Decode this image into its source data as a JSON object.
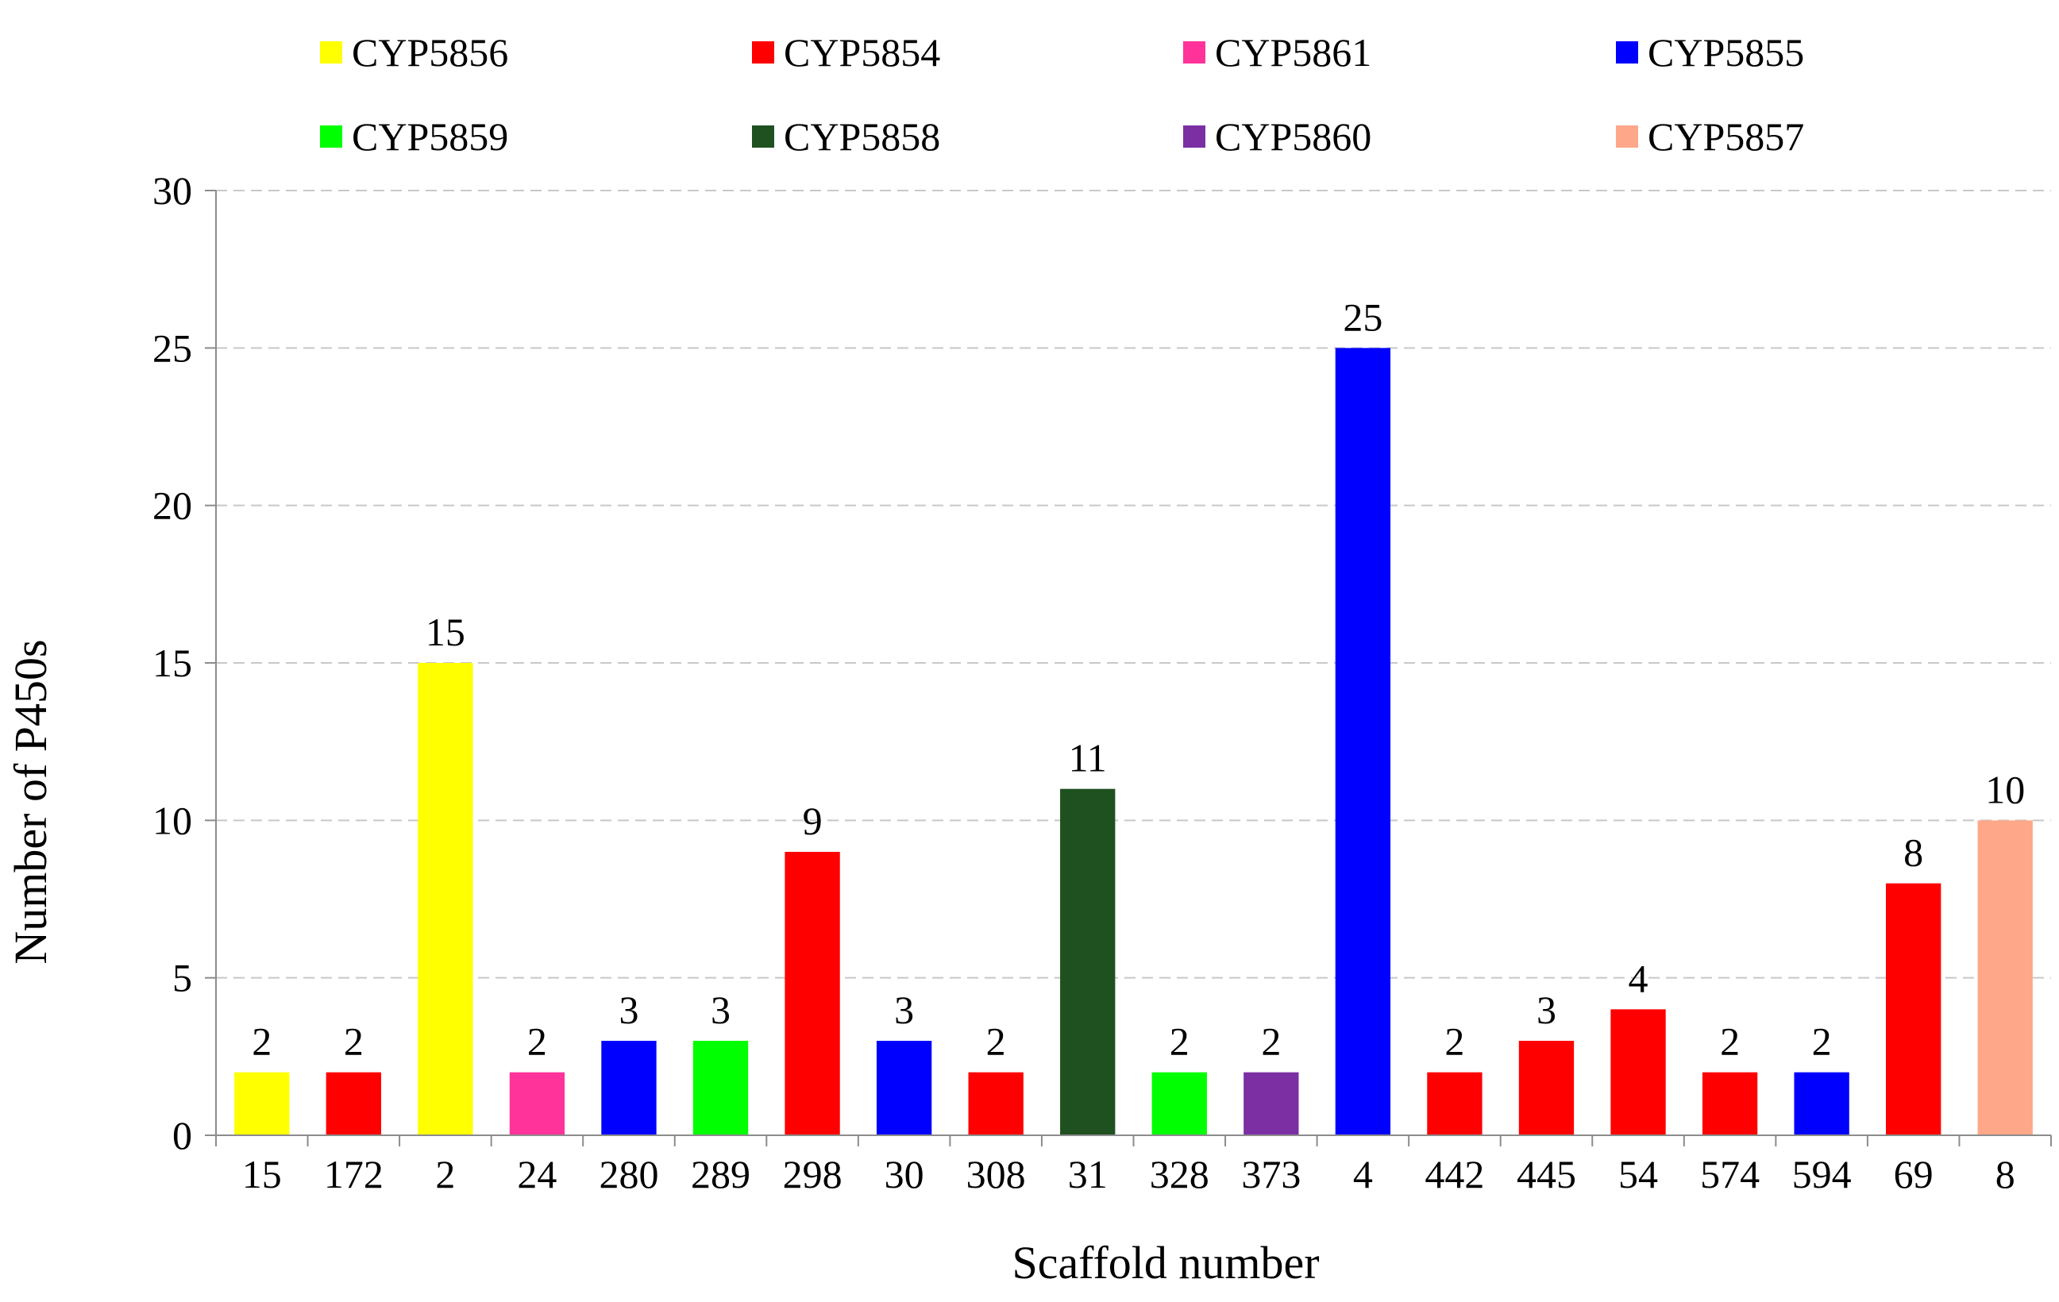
{
  "chart_data": {
    "type": "bar",
    "title": "",
    "xlabel": "Scaffold number",
    "ylabel": "Number of P450s",
    "ylim": [
      0,
      30
    ],
    "yticks": [
      0,
      5,
      10,
      15,
      20,
      25,
      30
    ],
    "grid": "horizontal dashed",
    "legend_position": "top",
    "legend": [
      {
        "name": "CYP5856",
        "color": "#FFFF00"
      },
      {
        "name": "CYP5854",
        "color": "#FF0000"
      },
      {
        "name": "CYP5861",
        "color": "#FF3399"
      },
      {
        "name": "CYP5855",
        "color": "#0000FF"
      },
      {
        "name": "CYP5859",
        "color": "#00FF00"
      },
      {
        "name": "CYP5858",
        "color": "#1F5120"
      },
      {
        "name": "CYP5860",
        "color": "#7B2FA3"
      },
      {
        "name": "CYP5857",
        "color": "#FFA789"
      }
    ],
    "categories": [
      "15",
      "172",
      "2",
      "24",
      "280",
      "289",
      "298",
      "30",
      "308",
      "31",
      "328",
      "373",
      "4",
      "442",
      "445",
      "54",
      "574",
      "594",
      "69",
      "8"
    ],
    "values": [
      2,
      2,
      15,
      2,
      3,
      3,
      9,
      3,
      2,
      11,
      2,
      2,
      25,
      2,
      3,
      4,
      2,
      2,
      8,
      10
    ],
    "bar_family": [
      "CYP5856",
      "CYP5854",
      "CYP5856",
      "CYP5861",
      "CYP5855",
      "CYP5859",
      "CYP5854",
      "CYP5855",
      "CYP5854",
      "CYP5858",
      "CYP5859",
      "CYP5860",
      "CYP5855",
      "CYP5854",
      "CYP5854",
      "CYP5854",
      "CYP5854",
      "CYP5855",
      "CYP5854",
      "CYP5857"
    ]
  }
}
